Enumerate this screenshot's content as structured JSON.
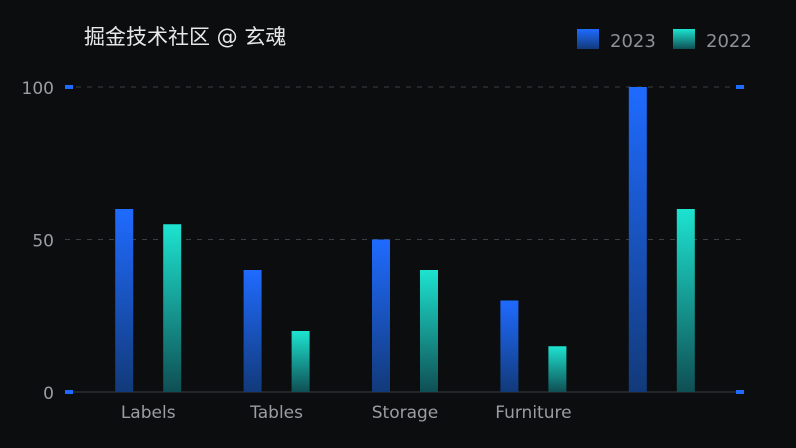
{
  "chart_data": {
    "type": "bar",
    "categories": [
      "Labels",
      "Tables",
      "Storage",
      "Furniture",
      ""
    ],
    "series": [
      {
        "name": "2023",
        "values": [
          60,
          40,
          50,
          30,
          100
        ],
        "color_top": "#1f6bff",
        "color_bottom": "#123a7a"
      },
      {
        "name": "2022",
        "values": [
          55,
          20,
          40,
          15,
          60
        ],
        "color_top": "#1de3d0",
        "color_bottom": "#0f4f54"
      }
    ],
    "yticks": [
      0,
      50,
      100
    ],
    "ylim": [
      0,
      100
    ],
    "grid": true,
    "legend_position": "top-right",
    "title": "",
    "xlabel": "",
    "ylabel": ""
  },
  "watermark": "掘金技术社区 @ 玄魂"
}
